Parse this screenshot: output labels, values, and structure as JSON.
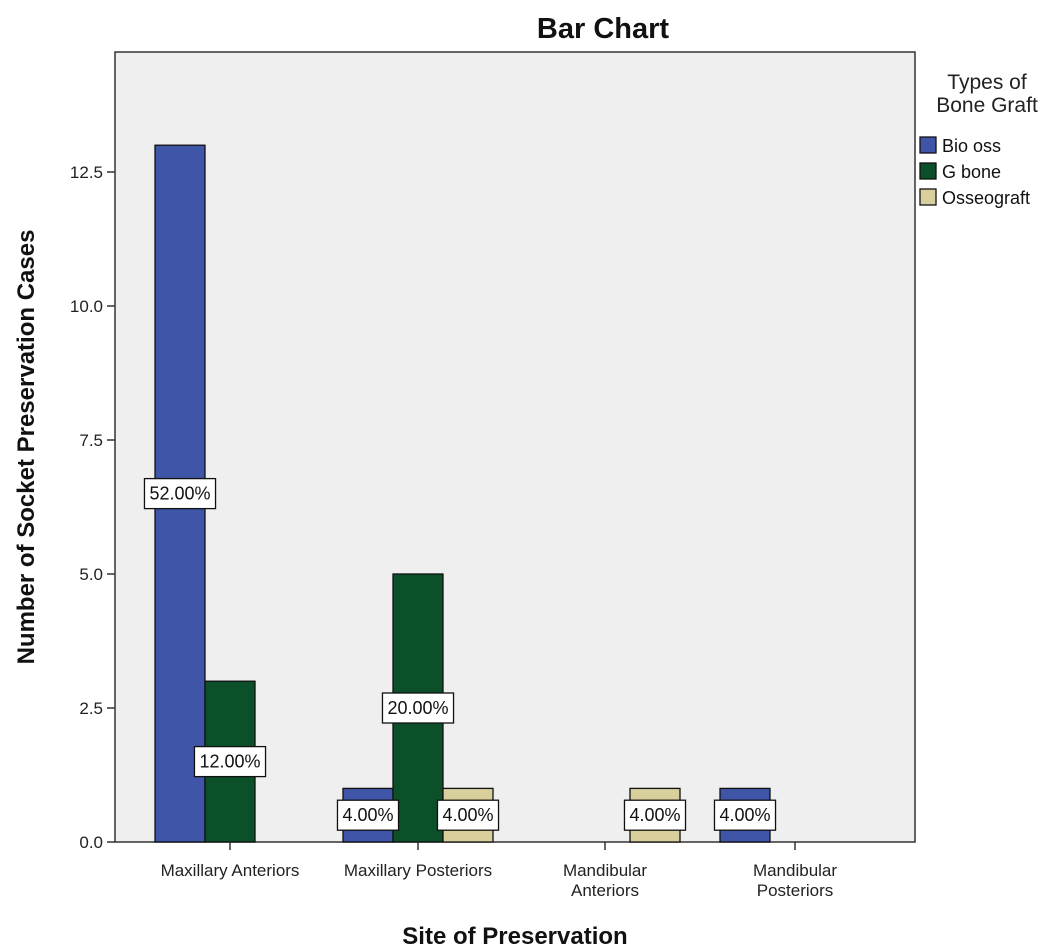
{
  "chart_data": {
    "type": "bar",
    "title": "Bar Chart",
    "xlabel": "Site of Preservation",
    "ylabel": "Number of Socket Preservation Cases",
    "categories": [
      [
        "Maxillary Anteriors"
      ],
      [
        "Maxillary Posteriors"
      ],
      [
        "Mandibular",
        "Anteriors"
      ],
      [
        "Mandibular",
        "Posteriors"
      ]
    ],
    "series": [
      {
        "name": "Bio oss",
        "color": "#3e55a8",
        "values": [
          13,
          1,
          0,
          1
        ],
        "labels": [
          "52.00%",
          "4.00%",
          "",
          "4.00%"
        ]
      },
      {
        "name": "G bone",
        "color": "#0b5028",
        "values": [
          3,
          5,
          0,
          0
        ],
        "labels": [
          "12.00%",
          "20.00%",
          "",
          ""
        ]
      },
      {
        "name": "Osseograft",
        "color": "#d8cf9c",
        "values": [
          0,
          1,
          1,
          0
        ],
        "labels": [
          "",
          "4.00%",
          "4.00%",
          ""
        ]
      }
    ],
    "ylim": [
      0,
      15
    ],
    "yticks": [
      0,
      2.5,
      5,
      7.5,
      10,
      12.5
    ],
    "ytick_labels": [
      "0.0",
      "2.5",
      "5.0",
      "7.5",
      "10.0",
      "12.5"
    ],
    "legend": {
      "title": [
        "Types of",
        "Bone Graft"
      ],
      "position": "right"
    },
    "grid": false,
    "plot_background": "#efefef"
  }
}
